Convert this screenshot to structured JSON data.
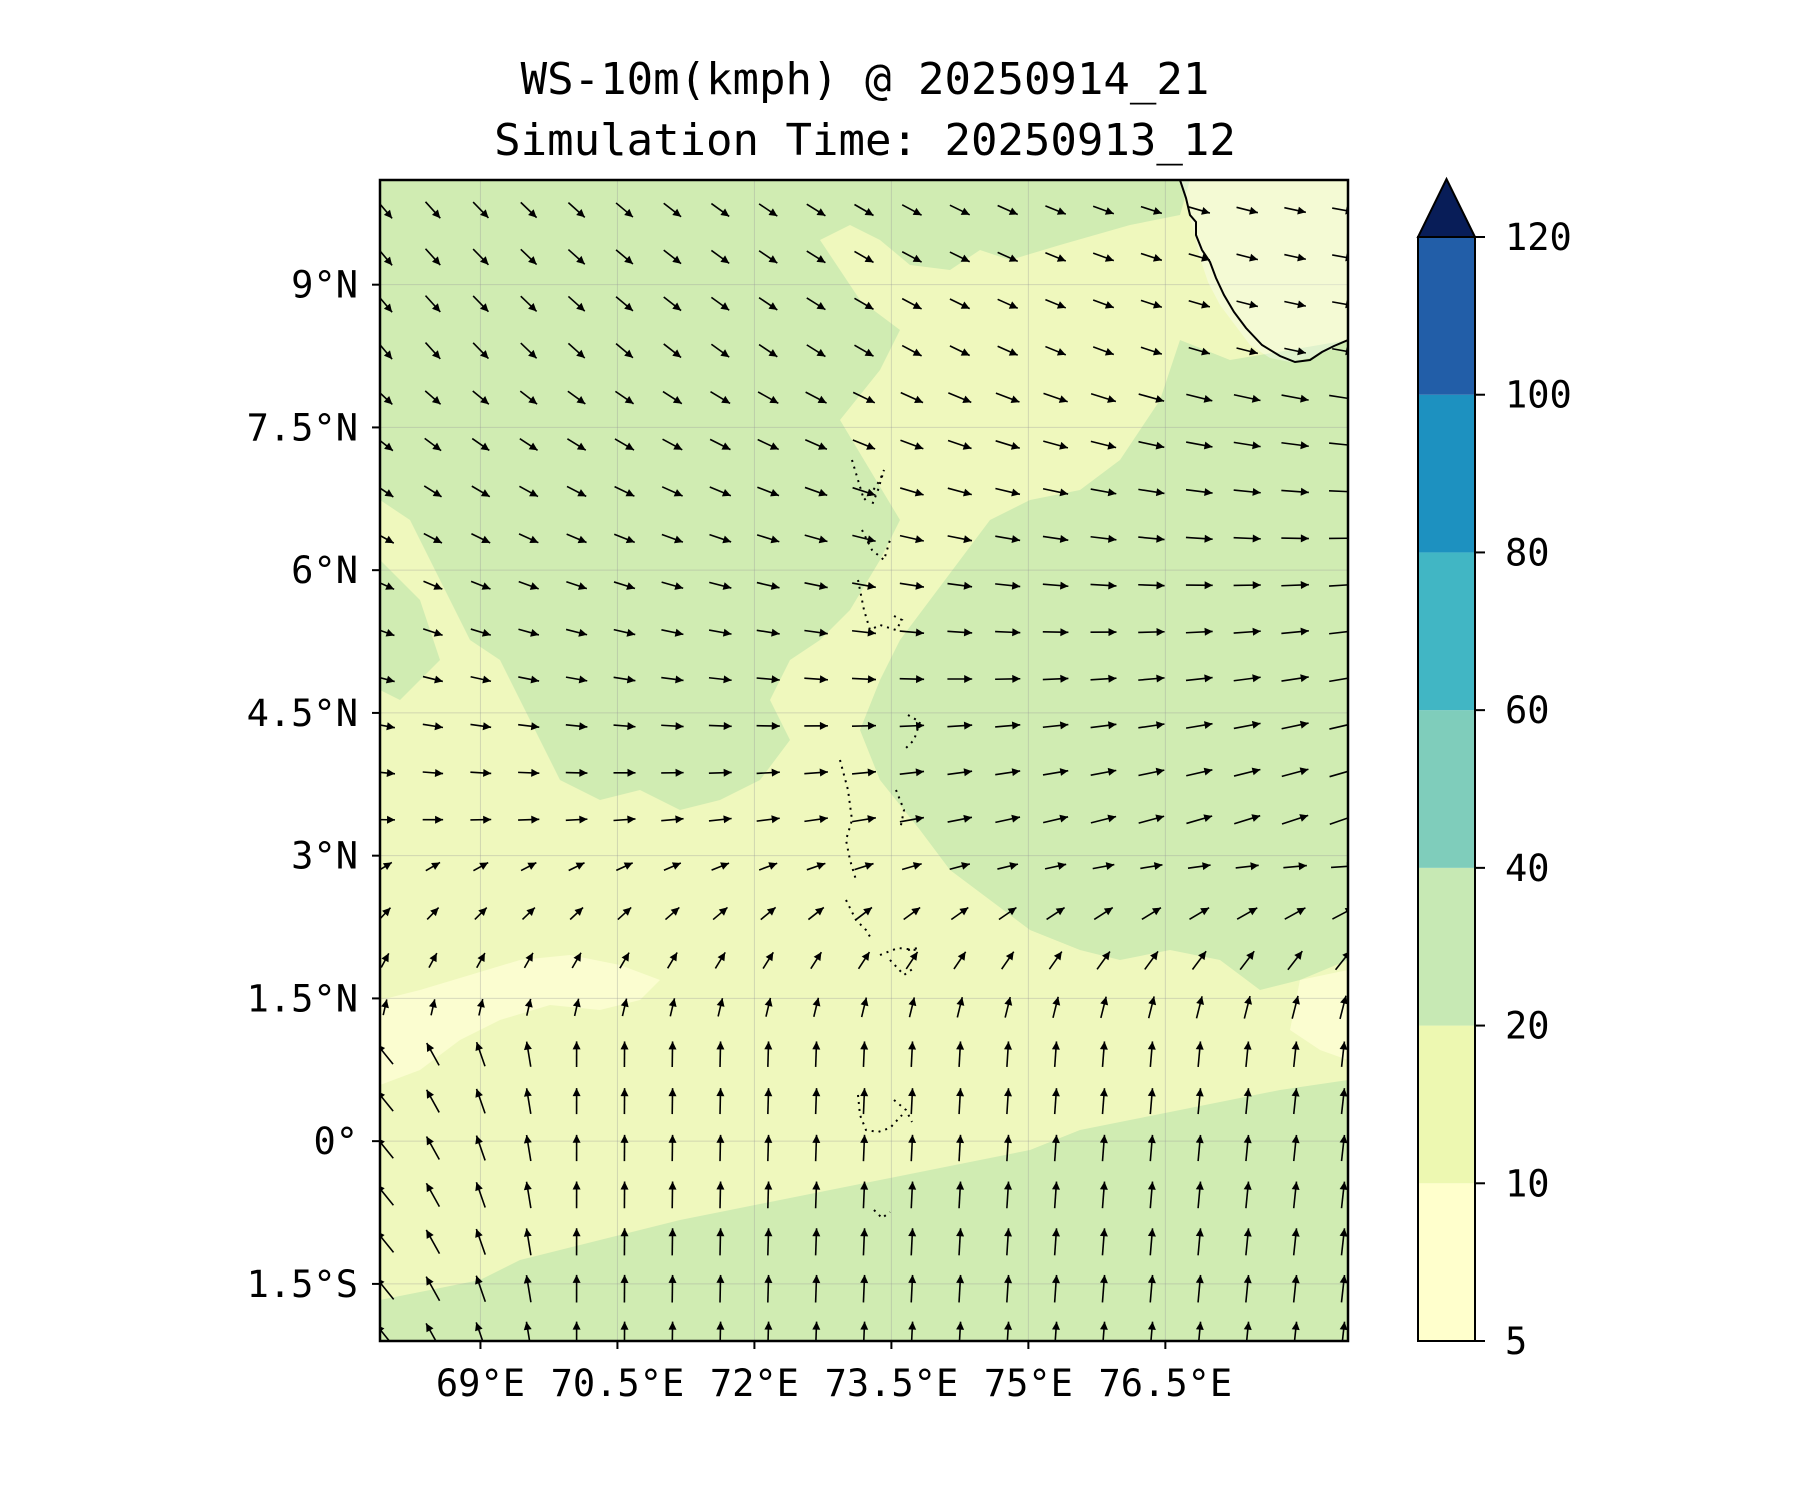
{
  "title": {
    "line1": "WS-10m(kmph) @ 20250914_21",
    "line2": "Simulation Time: 20250913_12"
  },
  "map": {
    "lon_range": [
      67.9,
      78.5
    ],
    "lat_range": [
      -2.1,
      10.1
    ],
    "lat_ticks": [
      {
        "value": 9,
        "label": "9°N"
      },
      {
        "value": 7.5,
        "label": "7.5°N"
      },
      {
        "value": 6,
        "label": "6°N"
      },
      {
        "value": 4.5,
        "label": "4.5°N"
      },
      {
        "value": 3,
        "label": "3°N"
      },
      {
        "value": 1.5,
        "label": "1.5°N"
      },
      {
        "value": 0,
        "label": "0°"
      },
      {
        "value": -1.5,
        "label": "1.5°S"
      }
    ],
    "lon_ticks": [
      {
        "value": 69,
        "label": "69°E"
      },
      {
        "value": 70.5,
        "label": "70.5°E"
      },
      {
        "value": 72,
        "label": "72°E"
      },
      {
        "value": 73.5,
        "label": "73.5°E"
      },
      {
        "value": 75,
        "label": "75°E"
      },
      {
        "value": 76.5,
        "label": "76.5°E"
      }
    ],
    "gridlines": true,
    "features": [
      "India southern coastline (top-right)",
      "Maldives atolls (dotted, center)"
    ]
  },
  "colorbar": {
    "levels": [
      5,
      10,
      20,
      40,
      60,
      80,
      100,
      120
    ],
    "labels": [
      "5",
      "10",
      "20",
      "40",
      "60",
      "80",
      "100",
      "120"
    ],
    "colors": [
      "#ffffcc",
      "#edf8b1",
      "#c7e9b4",
      "#7fcdbb",
      "#41b6c4",
      "#1d91c0",
      "#225ea8",
      "#0c2c84"
    ],
    "extend_color": "#081d58",
    "extend": "max",
    "position": "right"
  },
  "colors": {
    "level_5_10": "#fbfdd0",
    "level_10_20": "#eff8bd",
    "level_20_40": "#d0ecb2",
    "arrow": "#000000"
  }
}
